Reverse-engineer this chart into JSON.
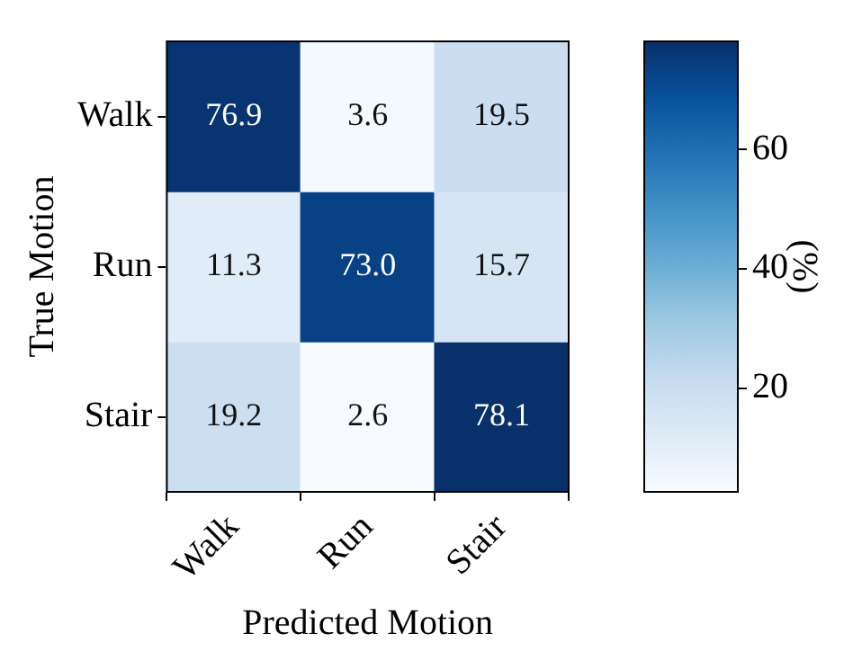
{
  "chart_data": {
    "type": "heatmap",
    "xlabel": "Predicted Motion",
    "ylabel": "True Motion",
    "clabel": "(%)",
    "categories": [
      "Walk",
      "Run",
      "Stair"
    ],
    "y_categories": [
      "Walk",
      "Run",
      "Stair"
    ],
    "cells": [
      [
        76.9,
        3.6,
        19.5
      ],
      [
        11.3,
        73.0,
        15.7
      ],
      [
        19.2,
        2.6,
        78.1
      ]
    ],
    "cell_labels": [
      [
        "76.9",
        "3.6",
        "19.5"
      ],
      [
        "11.3",
        "73.0",
        "15.7"
      ],
      [
        "19.2",
        "2.6",
        "78.1"
      ]
    ],
    "clim": [
      2.6,
      78.1
    ],
    "cticks": [
      20,
      40,
      60
    ],
    "data_labels": true,
    "grid": false
  }
}
